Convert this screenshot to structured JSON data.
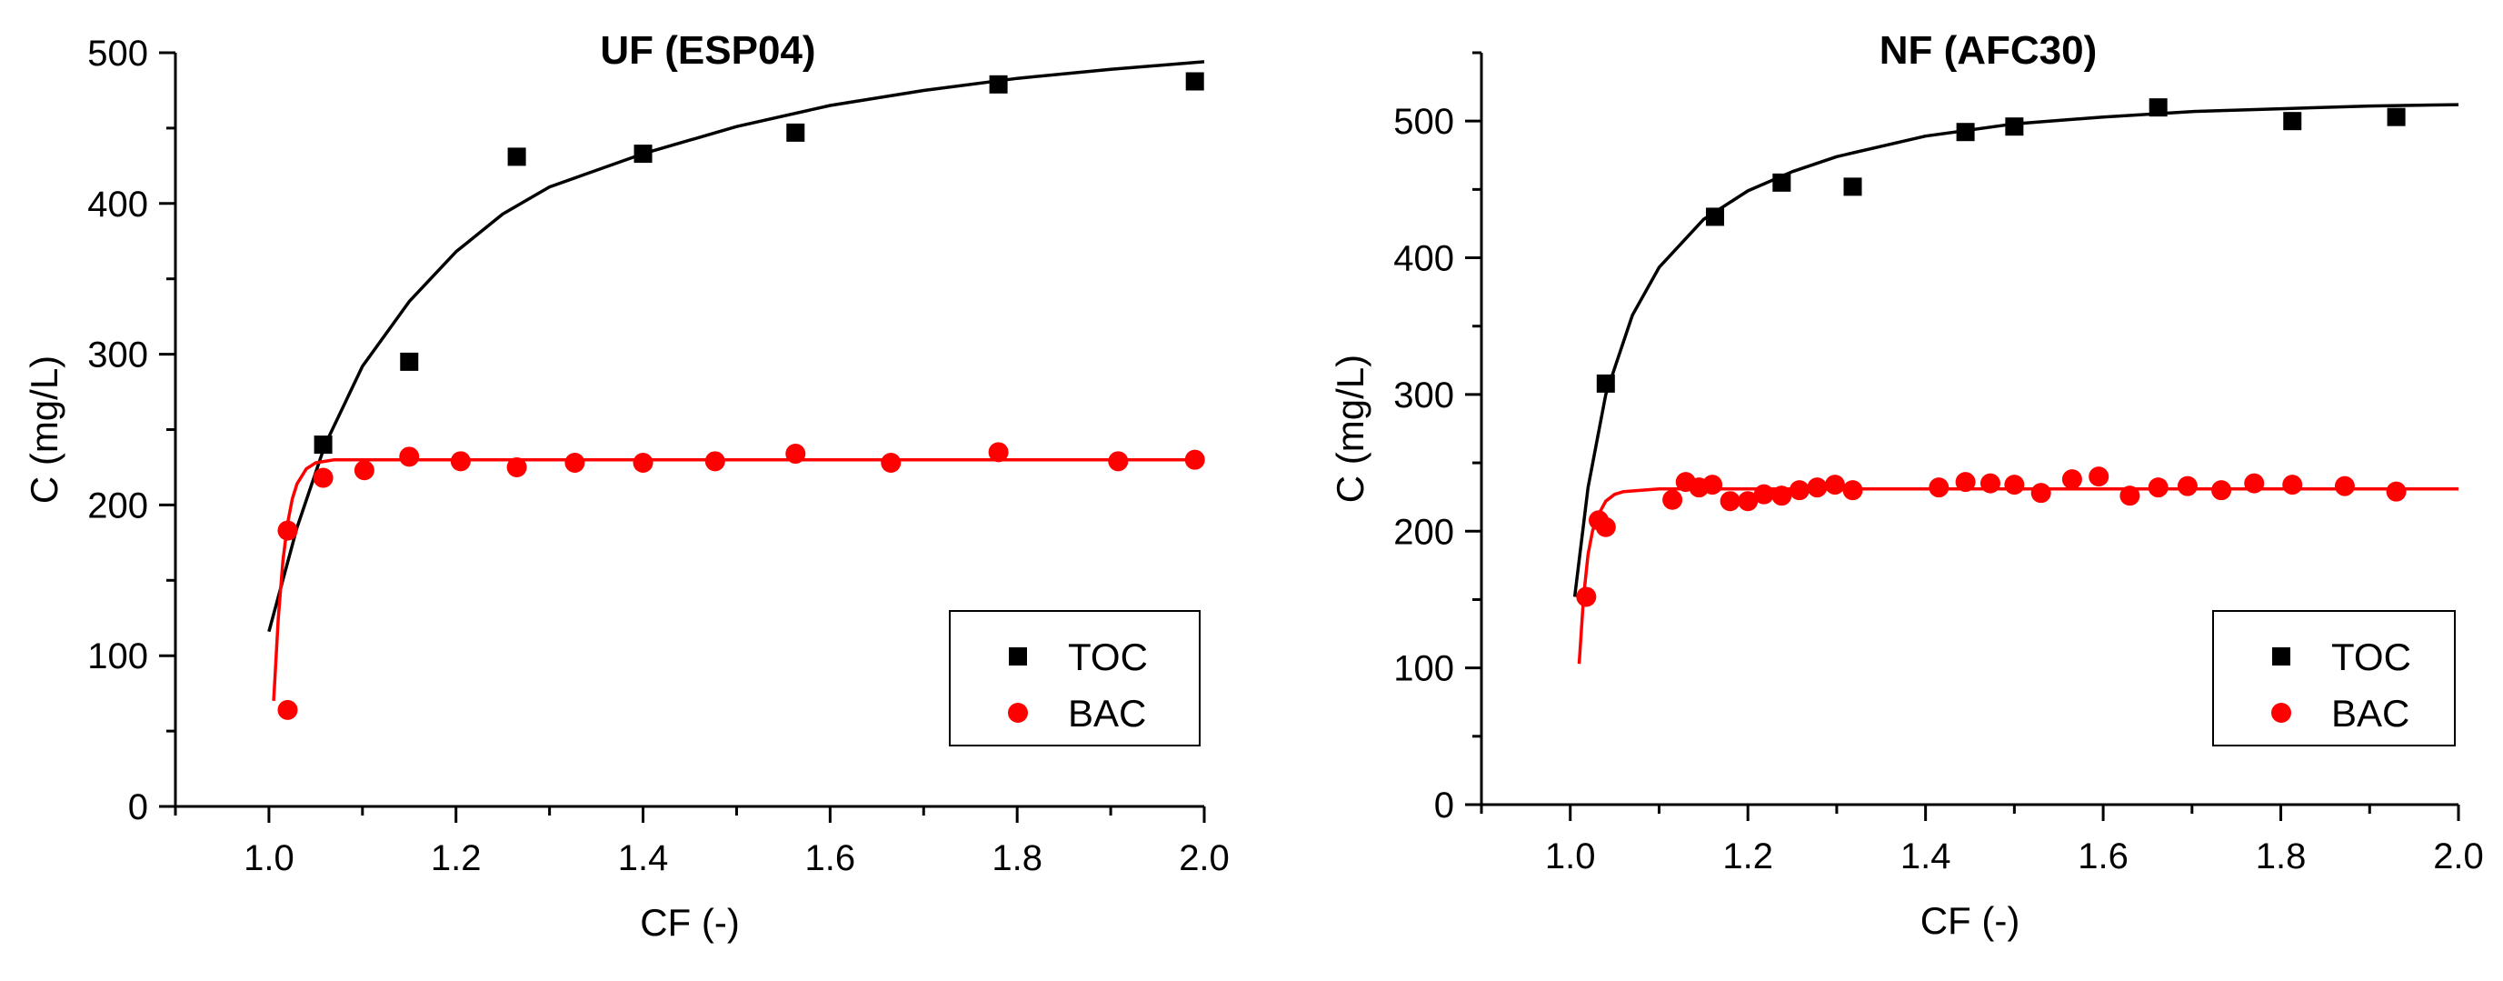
{
  "colors": {
    "toc": "#000000",
    "bac": "#ff0000",
    "axis": "#000000",
    "background": "#ffffff"
  },
  "chart_data": [
    {
      "type": "scatter",
      "title": "UF (ESP04)",
      "xlabel": "CF (-)",
      "ylabel": "C (mg/L)",
      "xlim": [
        0.9,
        2.0
      ],
      "ylim": [
        0,
        500
      ],
      "xticks": [
        1.0,
        1.2,
        1.4,
        1.6,
        1.8,
        2.0
      ],
      "xtick_labels": [
        "1.0",
        "1.2",
        "1.4",
        "1.6",
        "1.8",
        "2.0"
      ],
      "yticks": [
        0,
        100,
        200,
        300,
        400,
        500
      ],
      "ytick_labels": [
        "0",
        "100",
        "200",
        "300",
        "400",
        "500"
      ],
      "grid": false,
      "legend_position": "bottom-right",
      "series": [
        {
          "name": "TOC",
          "marker": "square",
          "color": "#000000",
          "x": [
            1.058,
            1.15,
            1.265,
            1.4,
            1.563,
            1.78,
            1.99
          ],
          "y": [
            240,
            295,
            431,
            433,
            447,
            479,
            481
          ],
          "fit": {
            "x": [
              1.0,
              1.03,
              1.06,
              1.1,
              1.15,
              1.2,
              1.25,
              1.3,
              1.4,
              1.5,
              1.6,
              1.7,
              1.8,
              1.9,
              2.0
            ],
            "y": [
              116,
              185,
              240,
              292,
              335,
              368,
              393,
              411,
              433,
              451,
              465,
              475,
              483,
              489,
              494
            ]
          }
        },
        {
          "name": "BAC",
          "marker": "circle",
          "color": "#ff0000",
          "x": [
            1.02,
            1.02,
            1.058,
            1.102,
            1.15,
            1.205,
            1.265,
            1.327,
            1.4,
            1.477,
            1.563,
            1.665,
            1.78,
            1.908,
            1.99
          ],
          "y": [
            183,
            64,
            218,
            223,
            232,
            229,
            225,
            228,
            228,
            229,
            234,
            228,
            235,
            229,
            230
          ],
          "fit": {
            "x": [
              1.005,
              1.01,
              1.015,
              1.02,
              1.025,
              1.03,
              1.04,
              1.05,
              1.07,
              1.1,
              1.15,
              1.2,
              1.4,
              1.7,
              2.0
            ],
            "y": [
              70,
              125,
              163,
              188,
              204,
              214,
              224,
              228,
              230,
              230,
              230,
              230,
              230,
              230,
              230
            ]
          }
        }
      ]
    },
    {
      "type": "scatter",
      "title": "NF (AFC30)",
      "xlabel": "CF (-)",
      "ylabel": "C (mg/L)",
      "xlim": [
        0.9,
        2.0
      ],
      "ylim": [
        0,
        550
      ],
      "xticks": [
        1.0,
        1.2,
        1.4,
        1.6,
        1.8,
        2.0
      ],
      "xtick_labels": [
        "1.0",
        "1.2",
        "1.4",
        "1.6",
        "1.8",
        "2.0"
      ],
      "yticks": [
        0,
        100,
        200,
        300,
        400,
        500
      ],
      "ytick_labels": [
        "0",
        "100",
        "200",
        "300",
        "400",
        "500"
      ],
      "grid": false,
      "legend_position": "bottom-right",
      "series": [
        {
          "name": "TOC",
          "marker": "square",
          "color": "#000000",
          "x": [
            1.04,
            1.163,
            1.238,
            1.318,
            1.445,
            1.5,
            1.662,
            1.813,
            1.93
          ],
          "y": [
            308,
            430,
            455,
            452,
            492,
            496,
            510,
            500,
            503
          ],
          "fit": {
            "x": [
              1.005,
              1.02,
              1.04,
              1.07,
              1.1,
              1.15,
              1.2,
              1.25,
              1.3,
              1.4,
              1.5,
              1.6,
              1.7,
              1.8,
              1.9,
              2.0
            ],
            "y": [
              152,
              232,
              300,
              358,
              393,
              428,
              449,
              463,
              474,
              489,
              498,
              503,
              507,
              509,
              511,
              512
            ]
          }
        },
        {
          "name": "BAC",
          "marker": "circle",
          "color": "#ff0000",
          "x": [
            1.018,
            1.032,
            1.04,
            1.115,
            1.13,
            1.145,
            1.16,
            1.18,
            1.2,
            1.218,
            1.238,
            1.258,
            1.278,
            1.298,
            1.318,
            1.415,
            1.445,
            1.473,
            1.5,
            1.53,
            1.565,
            1.595,
            1.63,
            1.662,
            1.695,
            1.733,
            1.77,
            1.813,
            1.872,
            1.93
          ],
          "y": [
            152,
            208,
            203,
            223,
            236,
            232,
            234,
            222,
            222,
            227,
            226,
            230,
            232,
            234,
            230,
            232,
            236,
            235,
            234,
            228,
            238,
            240,
            226,
            232,
            233,
            230,
            235,
            234,
            233,
            229
          ],
          "fit": {
            "x": [
              1.01,
              1.015,
              1.02,
              1.025,
              1.03,
              1.04,
              1.05,
              1.06,
              1.08,
              1.1,
              1.15,
              1.3,
              1.6,
              2.0
            ],
            "y": [
              103,
              152,
              183,
              200,
              210,
              222,
              227,
              229,
              230,
              231,
              231,
              231,
              231,
              231
            ]
          }
        }
      ]
    }
  ]
}
